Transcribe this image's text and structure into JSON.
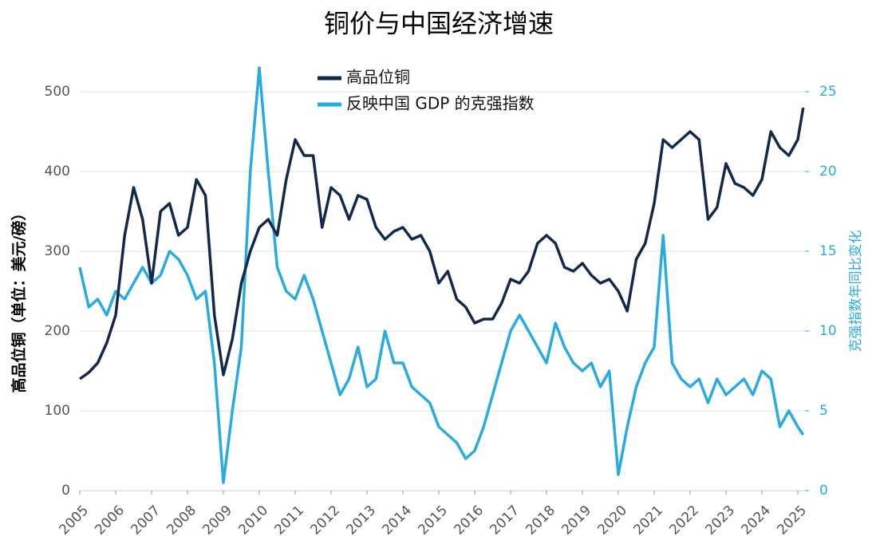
{
  "chart_data": {
    "type": "line",
    "title": "铜价与中国经济增速",
    "y_label": "高品位铜（单位：美元/磅）",
    "y2_label": "克强指数年同比变化",
    "x": [
      2005,
      2005.25,
      2005.5,
      2005.75,
      2006,
      2006.25,
      2006.5,
      2006.75,
      2007,
      2007.25,
      2007.5,
      2007.75,
      2008,
      2008.25,
      2008.5,
      2008.75,
      2009,
      2009.25,
      2009.5,
      2009.75,
      2010,
      2010.25,
      2010.5,
      2010.75,
      2011,
      2011.25,
      2011.5,
      2011.75,
      2012,
      2012.25,
      2012.5,
      2012.75,
      2013,
      2013.25,
      2013.5,
      2013.75,
      2014,
      2014.25,
      2014.5,
      2014.75,
      2015,
      2015.25,
      2015.5,
      2015.75,
      2016,
      2016.25,
      2016.5,
      2016.75,
      2017,
      2017.25,
      2017.5,
      2017.75,
      2018,
      2018.25,
      2018.5,
      2018.75,
      2019,
      2019.25,
      2019.5,
      2019.75,
      2020,
      2020.25,
      2020.5,
      2020.75,
      2021,
      2021.25,
      2021.5,
      2021.75,
      2022,
      2022.25,
      2022.5,
      2022.75,
      2023,
      2023.25,
      2023.5,
      2023.75,
      2024,
      2024.25,
      2024.5,
      2024.75,
      2025,
      2025.15
    ],
    "series": [
      {
        "name": "高品位铜",
        "color": "#13294b",
        "values": [
          140,
          148,
          160,
          185,
          220,
          320,
          380,
          340,
          260,
          350,
          360,
          320,
          330,
          390,
          370,
          220,
          145,
          190,
          260,
          300,
          330,
          340,
          320,
          390,
          440,
          420,
          420,
          330,
          380,
          370,
          340,
          370,
          365,
          330,
          315,
          325,
          330,
          315,
          320,
          300,
          260,
          275,
          240,
          230,
          210,
          215,
          215,
          235,
          265,
          260,
          275,
          310,
          320,
          310,
          280,
          275,
          285,
          270,
          260,
          265,
          250,
          225,
          290,
          310,
          360,
          440,
          430,
          440,
          450,
          440,
          340,
          355,
          410,
          385,
          380,
          370,
          390,
          450,
          430,
          420,
          440,
          480
        ]
      },
      {
        "name": "反映中国 GDP 的克强指数",
        "color": "#29abe2",
        "axis": "y2",
        "values": [
          14,
          11.5,
          12,
          11,
          12.5,
          12,
          13,
          14,
          13,
          13.5,
          15,
          14.5,
          13.5,
          12,
          12.5,
          8,
          0.5,
          5,
          9,
          20,
          26.5,
          20,
          14,
          12.5,
          12,
          13.5,
          12,
          10,
          8,
          6,
          7,
          9,
          6.5,
          7,
          10,
          8,
          8,
          6.5,
          6,
          5.5,
          4,
          3.5,
          3,
          2,
          2.5,
          4,
          6,
          8,
          10,
          11,
          10,
          9,
          8,
          10.5,
          9,
          8,
          7.5,
          8,
          6.5,
          7.5,
          1,
          4,
          6.5,
          8,
          9,
          16,
          8,
          7,
          6.5,
          7,
          5.5,
          7,
          6,
          6.5,
          7,
          6,
          7.5,
          7,
          4,
          5,
          4,
          3.5
        ]
      }
    ],
    "xlim": [
      2005,
      2025.2
    ],
    "xticks": [
      2005,
      2006,
      2007,
      2008,
      2009,
      2010,
      2011,
      2012,
      2013,
      2014,
      2015,
      2016,
      2017,
      2018,
      2019,
      2020,
      2021,
      2022,
      2023,
      2024,
      2025
    ],
    "ylim": [
      0,
      540
    ],
    "yticks": [
      0,
      100,
      200,
      300,
      400,
      500
    ],
    "y2lim": [
      0,
      27
    ],
    "y2ticks": [
      0,
      5,
      10,
      15,
      20,
      25
    ],
    "grid": true,
    "legend": "top"
  }
}
